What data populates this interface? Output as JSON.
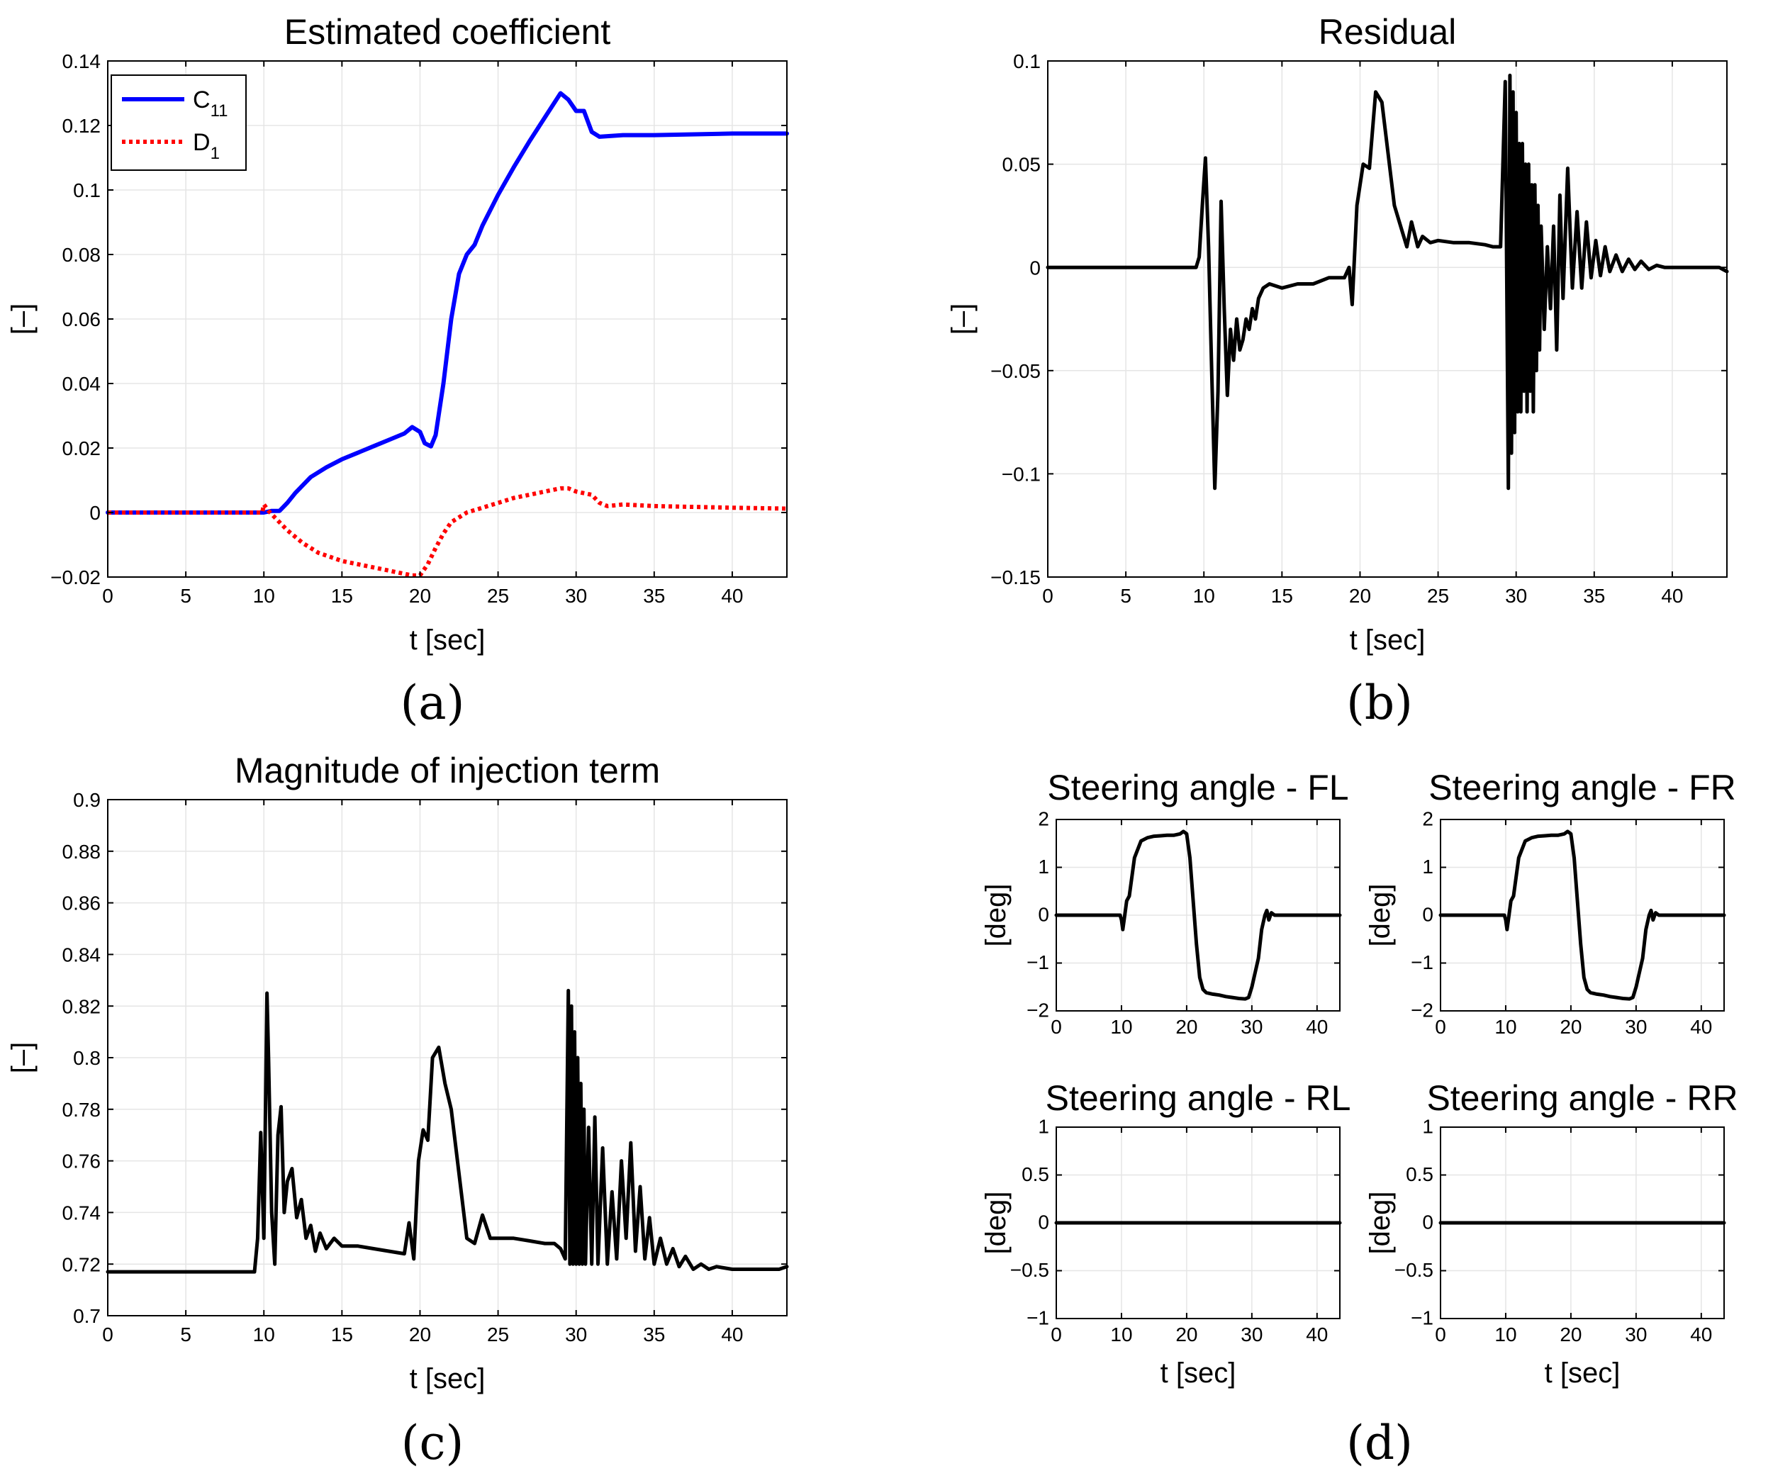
{
  "colors": {
    "c11": "#0000ff",
    "d1": "#ff0000",
    "trace": "#000000",
    "grid": "#e5e5e5"
  },
  "panel_labels": [
    "(a)",
    "(b)",
    "(c)",
    "(d)"
  ],
  "chart_data": [
    {
      "id": "a",
      "type": "line",
      "title": "Estimated coefficient",
      "xlabel": "t [sec]",
      "ylabel": "[–]",
      "xlim": [
        0,
        43.5
      ],
      "ylim": [
        -0.02,
        0.14
      ],
      "xticks": [
        0,
        5,
        10,
        15,
        20,
        25,
        30,
        35,
        40
      ],
      "yticks": [
        -0.02,
        0,
        0.02,
        0.04,
        0.06,
        0.08,
        0.1,
        0.12,
        0.14
      ],
      "ytick_labels": [
        "−0.02",
        "0",
        "0.02",
        "0.04",
        "0.06",
        "0.08",
        "0.1",
        "0.12",
        "0.14"
      ],
      "grid": true,
      "legend_position": "top-left",
      "series": [
        {
          "name": "C",
          "name_sub": "11",
          "style": "solid",
          "color_key": "c11",
          "x": [
            0,
            10,
            10.5,
            11,
            11.5,
            12,
            13,
            14,
            15,
            16,
            17,
            18,
            19,
            19.5,
            20,
            20.3,
            20.7,
            21,
            21.5,
            22,
            22.5,
            23,
            23.5,
            24,
            25,
            26,
            27,
            28,
            29,
            29.5,
            30,
            30.5,
            31,
            31.5,
            33,
            35,
            40,
            43.5
          ],
          "y": [
            0,
            0,
            0.0005,
            0.0005,
            0.003,
            0.006,
            0.011,
            0.014,
            0.0165,
            0.0185,
            0.0205,
            0.0225,
            0.0245,
            0.0265,
            0.025,
            0.0215,
            0.0205,
            0.024,
            0.04,
            0.06,
            0.074,
            0.08,
            0.083,
            0.089,
            0.0985,
            0.107,
            0.115,
            0.1225,
            0.13,
            0.128,
            0.1245,
            0.1245,
            0.118,
            0.1165,
            0.117,
            0.117,
            0.1175,
            0.1175
          ]
        },
        {
          "name": "D",
          "name_sub": "1",
          "style": "dotted",
          "color_key": "d1",
          "x": [
            0,
            9.9,
            10,
            10.3,
            10.8,
            11.5,
            12.5,
            13.5,
            15,
            16.5,
            18,
            19,
            19.5,
            20,
            20.5,
            21,
            21.5,
            22,
            23,
            24,
            25,
            26,
            27,
            28,
            29,
            29.5,
            30,
            30.5,
            31,
            31.5,
            32,
            33,
            35,
            40,
            43.5
          ],
          "y": [
            0,
            0,
            0.0025,
            0.0005,
            -0.002,
            -0.0055,
            -0.0095,
            -0.0125,
            -0.015,
            -0.0165,
            -0.018,
            -0.019,
            -0.0195,
            -0.0195,
            -0.016,
            -0.011,
            -0.0065,
            -0.003,
            0,
            0.0015,
            0.003,
            0.0045,
            0.0055,
            0.0065,
            0.0075,
            0.0075,
            0.0065,
            0.006,
            0.0055,
            0.003,
            0.002,
            0.0025,
            0.002,
            0.0015,
            0.0012
          ]
        }
      ]
    },
    {
      "id": "b",
      "type": "line",
      "title": "Residual",
      "xlabel": "t [sec]",
      "ylabel": "[–]",
      "xlim": [
        0,
        43.5
      ],
      "ylim": [
        -0.15,
        0.1
      ],
      "xticks": [
        0,
        5,
        10,
        15,
        20,
        25,
        30,
        35,
        40
      ],
      "yticks": [
        -0.15,
        -0.1,
        -0.05,
        0,
        0.05,
        0.1
      ],
      "ytick_labels": [
        "−0.15",
        "−0.1",
        "−0.05",
        "0",
        "0.05",
        "0.1"
      ],
      "grid": true,
      "series": [
        {
          "name": "residual",
          "style": "solid",
          "color_key": "trace",
          "x": [
            0,
            9.5,
            9.7,
            9.9,
            10.1,
            10.3,
            10.5,
            10.7,
            10.9,
            11.1,
            11.3,
            11.5,
            11.7,
            11.9,
            12.1,
            12.3,
            12.5,
            12.7,
            12.9,
            13.1,
            13.3,
            13.5,
            13.8,
            14.2,
            15,
            16,
            17,
            18,
            19,
            19.3,
            19.5,
            19.8,
            20.2,
            20.6,
            21,
            21.4,
            21.8,
            22.2,
            22.6,
            23,
            23.3,
            23.7,
            24,
            24.5,
            25,
            26,
            27,
            28,
            28.5,
            29,
            29.3,
            29.5,
            29.6,
            29.7,
            29.8,
            29.9,
            30.0,
            30.1,
            30.2,
            30.3,
            30.4,
            30.5,
            30.6,
            30.7,
            30.8,
            30.9,
            31.0,
            31.1,
            31.2,
            31.3,
            31.4,
            31.5,
            31.6,
            31.8,
            32,
            32.2,
            32.4,
            32.6,
            32.8,
            33,
            33.3,
            33.6,
            33.9,
            34.2,
            34.5,
            34.8,
            35.1,
            35.4,
            35.7,
            36,
            36.4,
            36.8,
            37.2,
            37.6,
            38,
            38.5,
            39,
            39.5,
            40,
            41,
            42,
            43,
            43.5
          ],
          "y": [
            0,
            0,
            0.005,
            0.03,
            0.053,
            0.01,
            -0.05,
            -0.107,
            -0.06,
            0.032,
            -0.02,
            -0.062,
            -0.03,
            -0.045,
            -0.025,
            -0.04,
            -0.035,
            -0.025,
            -0.03,
            -0.02,
            -0.025,
            -0.015,
            -0.01,
            -0.008,
            -0.01,
            -0.008,
            -0.008,
            -0.005,
            -0.005,
            0,
            -0.018,
            0.03,
            0.05,
            0.048,
            0.085,
            0.08,
            0.055,
            0.03,
            0.02,
            0.01,
            0.022,
            0.01,
            0.015,
            0.012,
            0.013,
            0.012,
            0.012,
            0.011,
            0.01,
            0.01,
            0.09,
            -0.107,
            0.093,
            -0.09,
            0.085,
            -0.08,
            0.075,
            -0.07,
            0.06,
            -0.07,
            0.06,
            -0.06,
            0.05,
            -0.07,
            0.05,
            -0.06,
            0.04,
            -0.07,
            0.04,
            -0.05,
            0.03,
            -0.04,
            0.02,
            -0.03,
            0.01,
            -0.02,
            0.02,
            -0.04,
            0.035,
            -0.015,
            0.048,
            -0.01,
            0.027,
            -0.01,
            0.022,
            -0.005,
            0.013,
            -0.004,
            0.01,
            -0.002,
            0.006,
            -0.002,
            0.004,
            -0.001,
            0.003,
            -0.001,
            0.001,
            0,
            0,
            0,
            0,
            0,
            -0.002
          ]
        }
      ]
    },
    {
      "id": "c",
      "type": "line",
      "title": "Magnitude of injection term",
      "xlabel": "t [sec]",
      "ylabel": "[–]",
      "xlim": [
        0,
        43.5
      ],
      "ylim": [
        0.7,
        0.9
      ],
      "xticks": [
        0,
        5,
        10,
        15,
        20,
        25,
        30,
        35,
        40
      ],
      "yticks": [
        0.7,
        0.72,
        0.74,
        0.76,
        0.78,
        0.8,
        0.82,
        0.84,
        0.86,
        0.88,
        0.9
      ],
      "ytick_labels": [
        "0.7",
        "0.72",
        "0.74",
        "0.76",
        "0.78",
        "0.8",
        "0.82",
        "0.84",
        "0.86",
        "0.88",
        "0.9"
      ],
      "grid": true,
      "series": [
        {
          "name": "injection",
          "style": "solid",
          "color_key": "trace",
          "x": [
            0,
            9.4,
            9.6,
            9.8,
            10.0,
            10.2,
            10.3,
            10.5,
            10.7,
            10.9,
            11.1,
            11.3,
            11.5,
            11.8,
            12.1,
            12.4,
            12.7,
            13,
            13.3,
            13.6,
            14,
            14.5,
            15,
            16,
            17,
            18,
            19,
            19.3,
            19.6,
            19.9,
            20.2,
            20.5,
            20.8,
            21.2,
            21.6,
            22,
            22.5,
            23,
            23.5,
            24,
            24.5,
            25,
            26,
            27,
            28,
            28.6,
            29,
            29.3,
            29.5,
            29.6,
            29.7,
            29.8,
            29.9,
            30.0,
            30.1,
            30.2,
            30.3,
            30.4,
            30.5,
            30.6,
            30.8,
            31,
            31.2,
            31.4,
            31.7,
            32,
            32.3,
            32.6,
            32.9,
            33.2,
            33.5,
            33.8,
            34.1,
            34.4,
            34.7,
            35,
            35.4,
            35.8,
            36.2,
            36.6,
            37,
            37.5,
            38,
            38.5,
            39,
            40,
            41,
            42,
            43,
            43.5
          ],
          "y": [
            0.717,
            0.717,
            0.73,
            0.771,
            0.73,
            0.825,
            0.8,
            0.74,
            0.72,
            0.77,
            0.781,
            0.74,
            0.752,
            0.757,
            0.738,
            0.745,
            0.73,
            0.735,
            0.725,
            0.732,
            0.726,
            0.73,
            0.727,
            0.727,
            0.726,
            0.725,
            0.724,
            0.736,
            0.722,
            0.76,
            0.772,
            0.768,
            0.8,
            0.804,
            0.79,
            0.78,
            0.755,
            0.73,
            0.728,
            0.739,
            0.73,
            0.73,
            0.73,
            0.729,
            0.728,
            0.728,
            0.726,
            0.722,
            0.826,
            0.72,
            0.82,
            0.72,
            0.81,
            0.72,
            0.8,
            0.72,
            0.79,
            0.72,
            0.78,
            0.72,
            0.773,
            0.72,
            0.777,
            0.72,
            0.765,
            0.72,
            0.748,
            0.722,
            0.76,
            0.73,
            0.767,
            0.725,
            0.75,
            0.722,
            0.738,
            0.72,
            0.73,
            0.72,
            0.726,
            0.719,
            0.723,
            0.718,
            0.72,
            0.718,
            0.719,
            0.718,
            0.718,
            0.718,
            0.718,
            0.719
          ]
        }
      ]
    },
    {
      "id": "d-fl",
      "type": "line",
      "title": "Steering angle - FL",
      "xlabel": "",
      "ylabel": "[deg]",
      "xlim": [
        0,
        43.5
      ],
      "ylim": [
        -2,
        2
      ],
      "xticks": [
        0,
        10,
        20,
        30,
        40
      ],
      "yticks": [
        -2,
        -1,
        0,
        1,
        2
      ],
      "ytick_labels": [
        "−2",
        "−1",
        "0",
        "1",
        "2"
      ],
      "grid": true,
      "series": [
        {
          "name": "FL",
          "style": "solid",
          "color_key": "trace",
          "x": [
            0,
            9.8,
            10.0,
            10.2,
            10.5,
            10.8,
            11.2,
            12,
            13,
            14,
            15,
            16,
            17,
            18,
            19,
            19.5,
            20,
            20.5,
            21,
            21.5,
            22,
            22.5,
            23,
            24,
            25,
            26,
            27,
            28,
            29,
            29.5,
            30,
            30.5,
            31,
            31.5,
            32,
            32.3,
            32.6,
            33,
            33.5,
            34,
            36,
            40,
            43.5
          ],
          "y": [
            0,
            0,
            -0.1,
            -0.3,
            0,
            0.3,
            0.4,
            1.2,
            1.55,
            1.62,
            1.65,
            1.66,
            1.67,
            1.67,
            1.7,
            1.75,
            1.7,
            1.2,
            0.3,
            -0.6,
            -1.3,
            -1.55,
            -1.62,
            -1.65,
            -1.67,
            -1.7,
            -1.72,
            -1.74,
            -1.75,
            -1.72,
            -1.5,
            -1.2,
            -0.9,
            -0.3,
            0,
            0.1,
            -0.1,
            0.05,
            0,
            0,
            0,
            0,
            0
          ]
        }
      ]
    },
    {
      "id": "d-fr",
      "type": "line",
      "title": "Steering angle - FR",
      "xlabel": "",
      "ylabel": "[deg]",
      "xlim": [
        0,
        43.5
      ],
      "ylim": [
        -2,
        2
      ],
      "xticks": [
        0,
        10,
        20,
        30,
        40
      ],
      "yticks": [
        -2,
        -1,
        0,
        1,
        2
      ],
      "ytick_labels": [
        "−2",
        "−1",
        "0",
        "1",
        "2"
      ],
      "grid": true,
      "series": [
        {
          "name": "FR",
          "style": "solid",
          "color_key": "trace",
          "x": [
            0,
            9.8,
            10.0,
            10.2,
            10.5,
            10.8,
            11.2,
            12,
            13,
            14,
            15,
            16,
            17,
            18,
            19,
            19.5,
            20,
            20.5,
            21,
            21.5,
            22,
            22.5,
            23,
            24,
            25,
            26,
            27,
            28,
            29,
            29.5,
            30,
            30.5,
            31,
            31.5,
            32,
            32.3,
            32.6,
            33,
            33.5,
            34,
            36,
            40,
            43.5
          ],
          "y": [
            0,
            0,
            -0.1,
            -0.3,
            0,
            0.3,
            0.4,
            1.2,
            1.55,
            1.62,
            1.65,
            1.66,
            1.67,
            1.67,
            1.7,
            1.75,
            1.7,
            1.2,
            0.3,
            -0.6,
            -1.3,
            -1.55,
            -1.62,
            -1.65,
            -1.67,
            -1.7,
            -1.72,
            -1.74,
            -1.75,
            -1.72,
            -1.5,
            -1.2,
            -0.9,
            -0.3,
            0,
            0.1,
            -0.1,
            0.05,
            0,
            0,
            0,
            0,
            0
          ]
        }
      ]
    },
    {
      "id": "d-rl",
      "type": "line",
      "title": "Steering angle - RL",
      "xlabel": "t [sec]",
      "ylabel": "[deg]",
      "xlim": [
        0,
        43.5
      ],
      "ylim": [
        -1,
        1
      ],
      "xticks": [
        0,
        10,
        20,
        30,
        40
      ],
      "yticks": [
        -1,
        -0.5,
        0,
        0.5,
        1
      ],
      "ytick_labels": [
        "−1",
        "−0.5",
        "0",
        "0.5",
        "1"
      ],
      "grid": true,
      "series": [
        {
          "name": "RL",
          "style": "solid",
          "color_key": "trace",
          "x": [
            0,
            43.5
          ],
          "y": [
            0,
            0
          ]
        }
      ]
    },
    {
      "id": "d-rr",
      "type": "line",
      "title": "Steering angle - RR",
      "xlabel": "t [sec]",
      "ylabel": "[deg]",
      "xlim": [
        0,
        43.5
      ],
      "ylim": [
        -1,
        1
      ],
      "xticks": [
        0,
        10,
        20,
        30,
        40
      ],
      "yticks": [
        -1,
        -0.5,
        0,
        0.5,
        1
      ],
      "ytick_labels": [
        "−1",
        "−0.5",
        "0",
        "0.5",
        "1"
      ],
      "grid": true,
      "series": [
        {
          "name": "RR",
          "style": "solid",
          "color_key": "trace",
          "x": [
            0,
            43.5
          ],
          "y": [
            0,
            0
          ]
        }
      ]
    }
  ]
}
